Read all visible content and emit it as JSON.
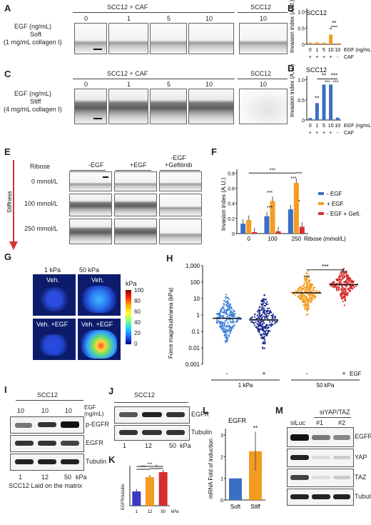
{
  "panels": {
    "A": {
      "label": "A",
      "ylabel1": "EGF (ng/mL)",
      "ylabel2": "Soft",
      "ylabel3": "(1 mg/mL collagen I)",
      "group1": "SCC12 + CAF",
      "group2": "SCC12",
      "doses": [
        "0",
        "1",
        "5",
        "10"
      ],
      "dose2": "10"
    },
    "B": {
      "label": "B",
      "title": "SCC12",
      "ylabel": "Invasion index (A.U.)",
      "yticks": [
        "0",
        "0.5",
        "1.0"
      ],
      "xlabel": "EGF (ng/mL)",
      "caf_label": "CAF",
      "doses": [
        "0",
        "1",
        "5",
        "10",
        "10"
      ],
      "caf": [
        "+",
        "+",
        "+",
        "+",
        "-"
      ],
      "sig": [
        "*",
        "**"
      ]
    },
    "C": {
      "label": "C",
      "ylabel1": "EGF (ng/mL)",
      "ylabel2": "Stiff",
      "ylabel3": "(4 mg/mL collagen I)",
      "group1": "SCC12 + CAF",
      "group2": "SCC12",
      "doses": [
        "0",
        "1",
        "5",
        "10"
      ],
      "dose2": "10"
    },
    "D": {
      "label": "D",
      "title": "SCC12",
      "ylabel": "Invasion index (A.U.)",
      "yticks": [
        "0",
        "0.5",
        "1.0"
      ],
      "xlabel": "EGF (ng/mL)",
      "caf_label": "CAF",
      "doses": [
        "0",
        "1",
        "5",
        "10",
        "10"
      ],
      "caf": [
        "+",
        "+",
        "+",
        "+",
        "-"
      ],
      "sig": [
        "**",
        "**",
        "***",
        "***",
        "***"
      ]
    },
    "E": {
      "label": "E",
      "ribose": "Ribose",
      "cols": [
        "-EGF",
        "+EGF",
        "-EGF\n+Gefitinib"
      ],
      "rows": [
        "0 mmol/L",
        "100 mmol/L",
        "250 mmol/L"
      ],
      "stiffness": "Stiffness"
    },
    "F": {
      "label": "F",
      "ylabel": "Invasion index (A.U.)",
      "yticks": [
        "0",
        "0.2",
        "0.4",
        "0.6",
        "0.8"
      ],
      "xticks": [
        "0",
        "100",
        "250"
      ],
      "xlabel": "Ribose (mmol/L)",
      "legend": [
        "- EGF",
        "+ EGF",
        "- EGF + Gefi."
      ]
    },
    "G": {
      "label": "G",
      "col1": "1 kPa",
      "col2": "50 kPa",
      "r1": "Veh.",
      "r2a": "Veh. +EGF",
      "r2b": "Veh. +EGF",
      "cbar_title": "kPa",
      "cbar_ticks": [
        "100",
        "80",
        "60",
        "40",
        "20",
        "0"
      ]
    },
    "H": {
      "label": "H",
      "ylabel": "Force magnitude/area (kPa)",
      "yticks": [
        "1,000",
        "100",
        "10",
        "1",
        "0.1",
        "0.01",
        "0.001"
      ],
      "xticks": [
        "-",
        "+",
        "-",
        "+"
      ],
      "groups": [
        "1 kPa",
        "50 kPa"
      ],
      "egf": "EGF",
      "sig": [
        "***",
        "***",
        "***"
      ]
    },
    "I": {
      "label": "I",
      "title": "SCC12",
      "egf_label": "EGF\n(ng/mL)",
      "lanes": [
        "10",
        "10",
        "10"
      ],
      "blots": [
        "p-EGFR",
        "EGFR",
        "Tubulin"
      ],
      "x": [
        "1",
        "12",
        "50"
      ],
      "unit": "kPa",
      "footer": "SCC12 Laid on the matrix"
    },
    "J": {
      "label": "J",
      "title": "SCC12",
      "blots": [
        "EGFR",
        "Tubulin"
      ],
      "x": [
        "1",
        "12",
        "50"
      ],
      "unit": "kPa"
    },
    "K": {
      "label": "K",
      "ylabel": "EGFR/tubulin",
      "x": [
        "1",
        "12",
        "50"
      ],
      "unit": "kPa",
      "sig": [
        "***",
        "***",
        "*"
      ]
    },
    "L": {
      "label": "L",
      "title": "EGFR",
      "ylabel": "mRNA Fold of induction",
      "yticks": [
        "0",
        "1",
        "2",
        "3"
      ],
      "categories": [
        "Soft",
        "Stiff"
      ],
      "sig": "**"
    },
    "M": {
      "label": "M",
      "group": "siYAP/TAZ",
      "lanes": [
        "siLuc",
        "#1",
        "#2"
      ],
      "blots": [
        "EGFR",
        "YAP",
        "TAZ",
        "Tubulin"
      ]
    }
  },
  "chart_data": [
    {
      "id": "B",
      "type": "bar",
      "categories": [
        "0",
        "1",
        "5",
        "10",
        "10"
      ],
      "values": [
        0.05,
        0.06,
        0.05,
        0.3,
        0.03
      ],
      "ylim": [
        0,
        1.1
      ],
      "colors": [
        "#f39c1f",
        "#f39c1f",
        "#f39c1f",
        "#f39c1f",
        "#f39c1f"
      ]
    },
    {
      "id": "D",
      "type": "bar",
      "categories": [
        "0",
        "1",
        "5",
        "10",
        "10"
      ],
      "values": [
        0.05,
        0.42,
        0.88,
        0.88,
        0.06
      ],
      "ylim": [
        0,
        1.1
      ],
      "colors": [
        "#3a6fc4",
        "#3a6fc4",
        "#3a6fc4",
        "#3a6fc4",
        "#3a6fc4"
      ]
    },
    {
      "id": "F",
      "type": "bar",
      "categories": [
        "0",
        "100",
        "250"
      ],
      "ylim": [
        0,
        0.85
      ],
      "series": [
        {
          "name": "- EGF",
          "color": "#3a6fc4",
          "values": [
            0.13,
            0.23,
            0.32
          ]
        },
        {
          "name": "+ EGF",
          "color": "#f39c1f",
          "values": [
            0.18,
            0.43,
            0.67
          ]
        },
        {
          "name": "- EGF + Gefi.",
          "color": "#d62e2e",
          "values": [
            0.02,
            0.03,
            0.09
          ]
        }
      ]
    },
    {
      "id": "K",
      "type": "bar",
      "categories": [
        "1",
        "12",
        "50"
      ],
      "values": [
        1.0,
        2.0,
        2.35
      ],
      "ylim": [
        0,
        2.8
      ],
      "colors": [
        "#3a3ac4",
        "#f39c1f",
        "#d62e2e"
      ]
    },
    {
      "id": "L",
      "type": "bar",
      "categories": [
        "Soft",
        "Stiff"
      ],
      "values": [
        1.0,
        2.25
      ],
      "ylim": [
        0,
        3.3
      ],
      "colors": [
        "#3a6fc4",
        "#f39c1f"
      ]
    }
  ]
}
